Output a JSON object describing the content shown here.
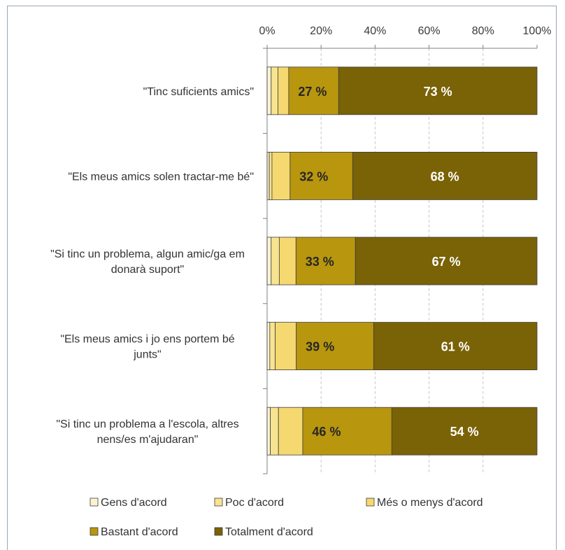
{
  "chart_data": {
    "type": "bar",
    "orientation": "horizontal",
    "stacked": true,
    "percent": true,
    "xlim": [
      0,
      100
    ],
    "x_ticks": [
      0,
      20,
      40,
      60,
      80,
      100
    ],
    "x_tick_labels": [
      "0%",
      "20%",
      "40%",
      "60%",
      "80%",
      "100%"
    ],
    "x_axis_position": "top",
    "grid": "vertical-dashed",
    "legend_position": "bottom",
    "categories": [
      "\"Tinc suficients amics\"",
      "\"Els meus amics solen tractar-me bé\"",
      "\"Si tinc un problema, algun amic/ga em donarà suport\"",
      "\"Els meus amics i jo ens portem bé junts\"",
      "\"Si tinc un problema a l'escola, altres nens/es m'ajudaran\""
    ],
    "series": [
      {
        "name": "Gens d'acord",
        "color": "#fbf3d2",
        "values": [
          1.5,
          0.8,
          1.5,
          1.0,
          1.2
        ]
      },
      {
        "name": "Poc d'acord",
        "color": "#f8e490",
        "values": [
          2.5,
          1.0,
          3.0,
          2.0,
          3.0
        ]
      },
      {
        "name": "Més o menys d'acord",
        "color": "#f5d870",
        "values": [
          4.0,
          6.7,
          6.2,
          7.8,
          9.0
        ]
      },
      {
        "name": "Bastant d'acord",
        "color": "#b8960e",
        "values": [
          18.5,
          23.2,
          22.0,
          28.7,
          33.0
        ]
      },
      {
        "name": "Totalment d'acord",
        "color": "#7a6206",
        "values": [
          73.5,
          68.3,
          67.3,
          60.5,
          53.8
        ]
      }
    ],
    "data_labels": [
      [
        "27 %",
        "73 %"
      ],
      [
        "32 %",
        "68 %"
      ],
      [
        "33 %",
        "67 %"
      ],
      [
        "39 %",
        "61 %"
      ],
      [
        "46 %",
        "54 %"
      ]
    ],
    "colors": {
      "axis": "#7f7f7f",
      "grid": "#c8c8c8",
      "bar_stroke": "#3d3d3d",
      "dark_label": "#262626",
      "light_label": "#ffffff"
    }
  }
}
